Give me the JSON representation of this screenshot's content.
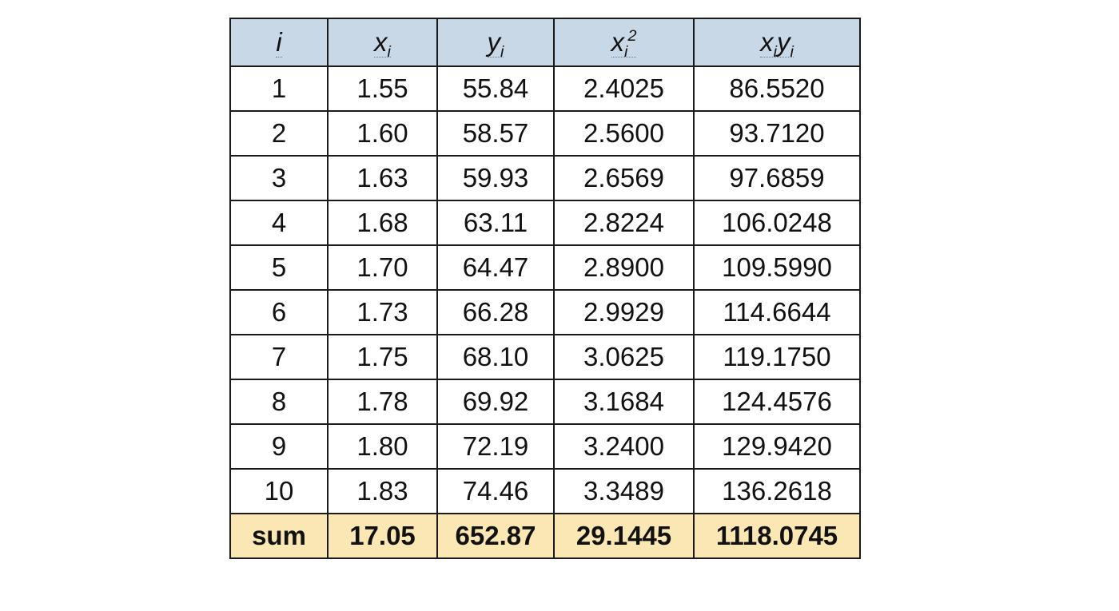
{
  "headers": [
    {
      "base": "i",
      "sub": "",
      "sup": "",
      "base2": "",
      "sub2": ""
    },
    {
      "base": "x",
      "sub": "i",
      "sup": "",
      "base2": "",
      "sub2": ""
    },
    {
      "base": "y",
      "sub": "i",
      "sup": "",
      "base2": "",
      "sub2": ""
    },
    {
      "base": "x",
      "sub": "i",
      "sup": "2",
      "base2": "",
      "sub2": ""
    },
    {
      "base": "x",
      "sub": "i",
      "sup": "",
      "base2": "y",
      "sub2": "i"
    }
  ],
  "rows": [
    [
      "1",
      "1.55",
      "55.84",
      "2.4025",
      "86.5520"
    ],
    [
      "2",
      "1.60",
      "58.57",
      "2.5600",
      "93.7120"
    ],
    [
      "3",
      "1.63",
      "59.93",
      "2.6569",
      "97.6859"
    ],
    [
      "4",
      "1.68",
      "63.11",
      "2.8224",
      "106.0248"
    ],
    [
      "5",
      "1.70",
      "64.47",
      "2.8900",
      "109.5990"
    ],
    [
      "6",
      "1.73",
      "66.28",
      "2.9929",
      "114.6644"
    ],
    [
      "7",
      "1.75",
      "68.10",
      "3.0625",
      "119.1750"
    ],
    [
      "8",
      "1.78",
      "69.92",
      "3.1684",
      "124.4576"
    ],
    [
      "9",
      "1.80",
      "72.19",
      "3.2400",
      "129.9420"
    ],
    [
      "10",
      "1.83",
      "74.46",
      "3.3489",
      "136.2618"
    ]
  ],
  "sum_row": [
    "sum",
    "17.05",
    "652.87",
    "29.1445",
    "1118.0745"
  ],
  "colors": {
    "header_bg": "#c9d8e6",
    "sum_bg": "#fbe7b3",
    "border": "#1a1a1a"
  }
}
